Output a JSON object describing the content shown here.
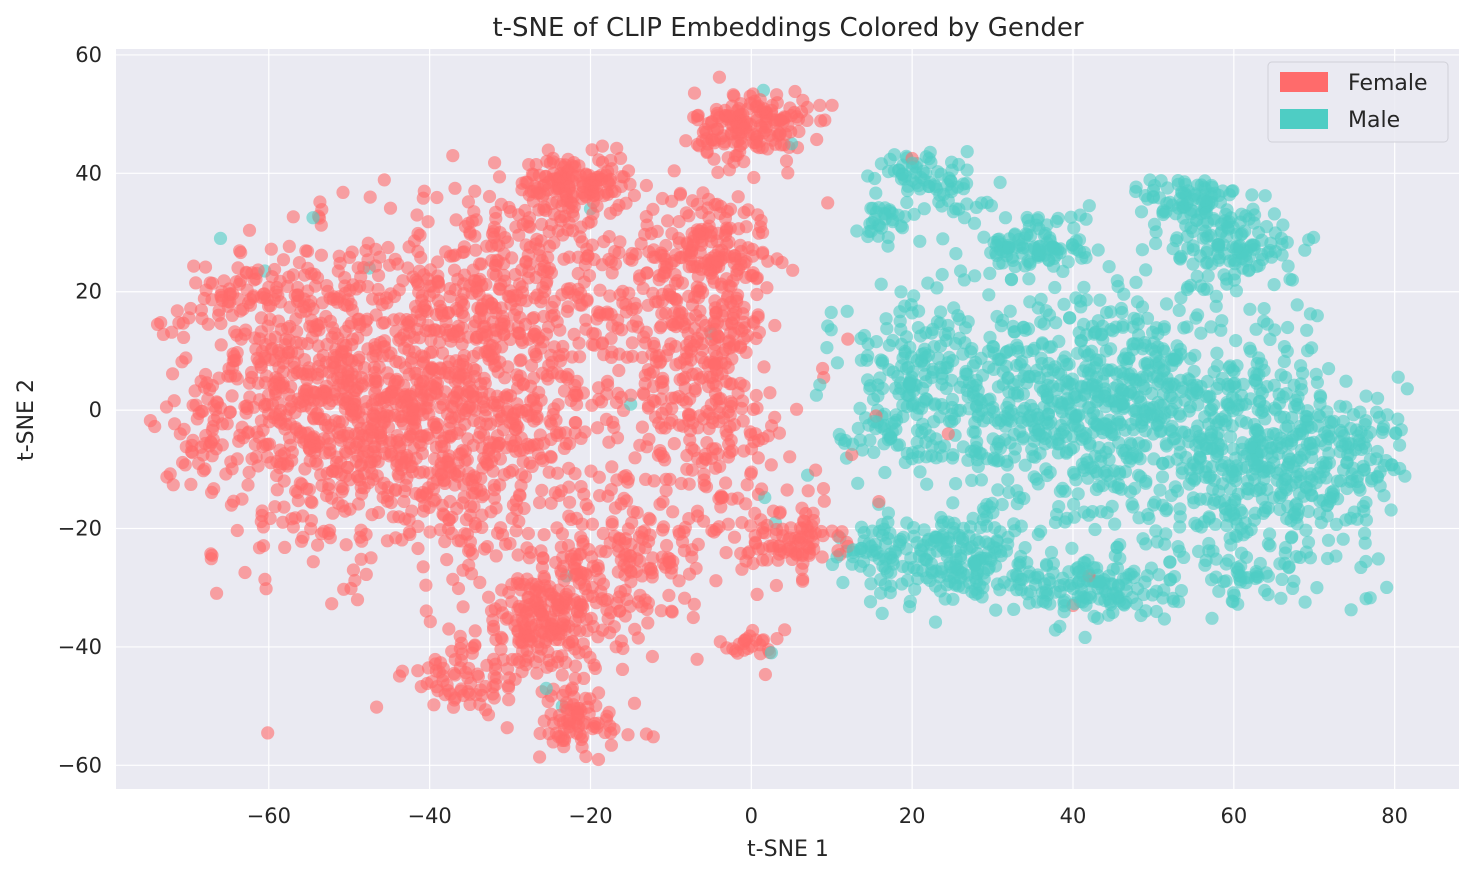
{
  "chart_data": {
    "type": "scatter",
    "title": "t-SNE of CLIP Embeddings Colored by Gender",
    "xlabel": "t-SNE 1",
    "ylabel": "t-SNE 2",
    "xlim": [
      -79,
      88
    ],
    "ylim": [
      -64,
      61
    ],
    "xticks": [
      -60,
      -40,
      -20,
      0,
      20,
      40,
      60,
      80
    ],
    "yticks": [
      -60,
      -40,
      -20,
      0,
      20,
      40,
      60
    ],
    "xtick_labels": [
      "−60",
      "−40",
      "−20",
      "0",
      "20",
      "40",
      "60",
      "80"
    ],
    "ytick_labels": [
      "−60",
      "−40",
      "−20",
      "0",
      "20",
      "40",
      "60"
    ],
    "grid": true,
    "legend_position": "top-right",
    "background_color": "#eaeaf2",
    "series": [
      {
        "name": "Female",
        "color": "#ff6b6b",
        "clusters": [
          {
            "cx": -40,
            "cy": 0,
            "sx": 13,
            "sy": 13,
            "n": 1200
          },
          {
            "cx": -55,
            "cy": 5,
            "sx": 7,
            "sy": 12,
            "n": 300
          },
          {
            "cx": -62,
            "cy": 20,
            "sx": 4,
            "sy": 3,
            "n": 60
          },
          {
            "cx": -22,
            "cy": 38,
            "sx": 3.5,
            "sy": 2.5,
            "n": 150
          },
          {
            "cx": -5,
            "cy": 28,
            "sx": 4,
            "sy": 5,
            "n": 150
          },
          {
            "cx": 0,
            "cy": 48,
            "sx": 3.5,
            "sy": 3,
            "n": 170
          },
          {
            "cx": -5,
            "cy": 0,
            "sx": 5,
            "sy": 12,
            "n": 250
          },
          {
            "cx": 5,
            "cy": -22,
            "sx": 3,
            "sy": 3,
            "n": 90
          },
          {
            "cx": -25,
            "cy": -35,
            "sx": 5,
            "sy": 5,
            "n": 250
          },
          {
            "cx": -22,
            "cy": -53,
            "sx": 4,
            "sy": 3,
            "n": 80
          },
          {
            "cx": -35,
            "cy": -45,
            "sx": 4,
            "sy": 3,
            "n": 70
          },
          {
            "cx": 0,
            "cy": -40,
            "sx": 2,
            "sy": 1.5,
            "n": 25
          },
          {
            "cx": -15,
            "cy": -25,
            "sx": 5,
            "sy": 5,
            "n": 120
          },
          {
            "cx": -10,
            "cy": 15,
            "sx": 6,
            "sy": 6,
            "n": 150
          },
          {
            "cx": -68,
            "cy": -3,
            "sx": 1.5,
            "sy": 4,
            "n": 20
          },
          {
            "cx": -30,
            "cy": 25,
            "sx": 8,
            "sy": 6,
            "n": 200
          }
        ]
      },
      {
        "name": "Male",
        "color": "#4ecdc4",
        "clusters": [
          {
            "cx": 45,
            "cy": 0,
            "sx": 12,
            "sy": 10,
            "n": 900
          },
          {
            "cx": 65,
            "cy": -10,
            "sx": 6,
            "sy": 8,
            "n": 300
          },
          {
            "cx": 25,
            "cy": -25,
            "sx": 5,
            "sy": 4,
            "n": 180
          },
          {
            "cx": 42,
            "cy": -30,
            "sx": 5,
            "sy": 3,
            "n": 150
          },
          {
            "cx": 35,
            "cy": 28,
            "sx": 3.5,
            "sy": 3,
            "n": 110
          },
          {
            "cx": 55,
            "cy": 35,
            "sx": 3,
            "sy": 2.5,
            "n": 80
          },
          {
            "cx": 60,
            "cy": 28,
            "sx": 4,
            "sy": 4,
            "n": 130
          },
          {
            "cx": 20,
            "cy": 40,
            "sx": 2.5,
            "sy": 2,
            "n": 50
          },
          {
            "cx": 16,
            "cy": 32,
            "sx": 1.5,
            "sy": 1.5,
            "n": 30
          },
          {
            "cx": 25,
            "cy": 37,
            "sx": 2,
            "sy": 2,
            "n": 25
          },
          {
            "cx": 20,
            "cy": 5,
            "sx": 5,
            "sy": 8,
            "n": 200
          },
          {
            "cx": 15,
            "cy": -25,
            "sx": 3,
            "sy": 3,
            "n": 40
          },
          {
            "cx": 75,
            "cy": -8,
            "sx": 3,
            "sy": 5,
            "n": 80
          },
          {
            "cx": 80,
            "cy": -3.5,
            "sx": 1,
            "sy": 0.5,
            "n": 5
          },
          {
            "cx": 62,
            "cy": -28,
            "sx": 4,
            "sy": 2,
            "n": 40
          }
        ]
      }
    ],
    "outliers": [
      {
        "series": "Male",
        "x": -54.5,
        "y": 32.5
      },
      {
        "series": "Male",
        "x": -66,
        "y": 29
      },
      {
        "series": "Male",
        "x": -47.5,
        "y": 24
      },
      {
        "series": "Male",
        "x": -60.5,
        "y": 23.5
      },
      {
        "series": "Male",
        "x": -20,
        "y": 34
      },
      {
        "series": "Male",
        "x": -5,
        "y": 13
      },
      {
        "series": "Male",
        "x": 1.5,
        "y": 54
      },
      {
        "series": "Male",
        "x": 5,
        "y": 45
      },
      {
        "series": "Male",
        "x": -15,
        "y": 1
      },
      {
        "series": "Male",
        "x": 7,
        "y": -11
      },
      {
        "series": "Male",
        "x": 3,
        "y": -19
      },
      {
        "series": "Male",
        "x": -23,
        "y": -28
      },
      {
        "series": "Male",
        "x": -25.5,
        "y": -47
      },
      {
        "series": "Male",
        "x": -23.5,
        "y": -50
      },
      {
        "series": "Male",
        "x": 2.5,
        "y": -41
      },
      {
        "series": "Female",
        "x": 9.5,
        "y": 35
      },
      {
        "series": "Female",
        "x": 12,
        "y": 12
      },
      {
        "series": "Female",
        "x": 12.5,
        "y": -7.5
      },
      {
        "series": "Female",
        "x": 9,
        "y": 5.5
      },
      {
        "series": "Female",
        "x": 20,
        "y": 42.5
      },
      {
        "series": "Female",
        "x": 24.5,
        "y": -4
      },
      {
        "series": "Female",
        "x": 42,
        "y": -28
      },
      {
        "series": "Female",
        "x": 40,
        "y": -33
      },
      {
        "series": "Female",
        "x": 15.5,
        "y": -1
      }
    ]
  }
}
